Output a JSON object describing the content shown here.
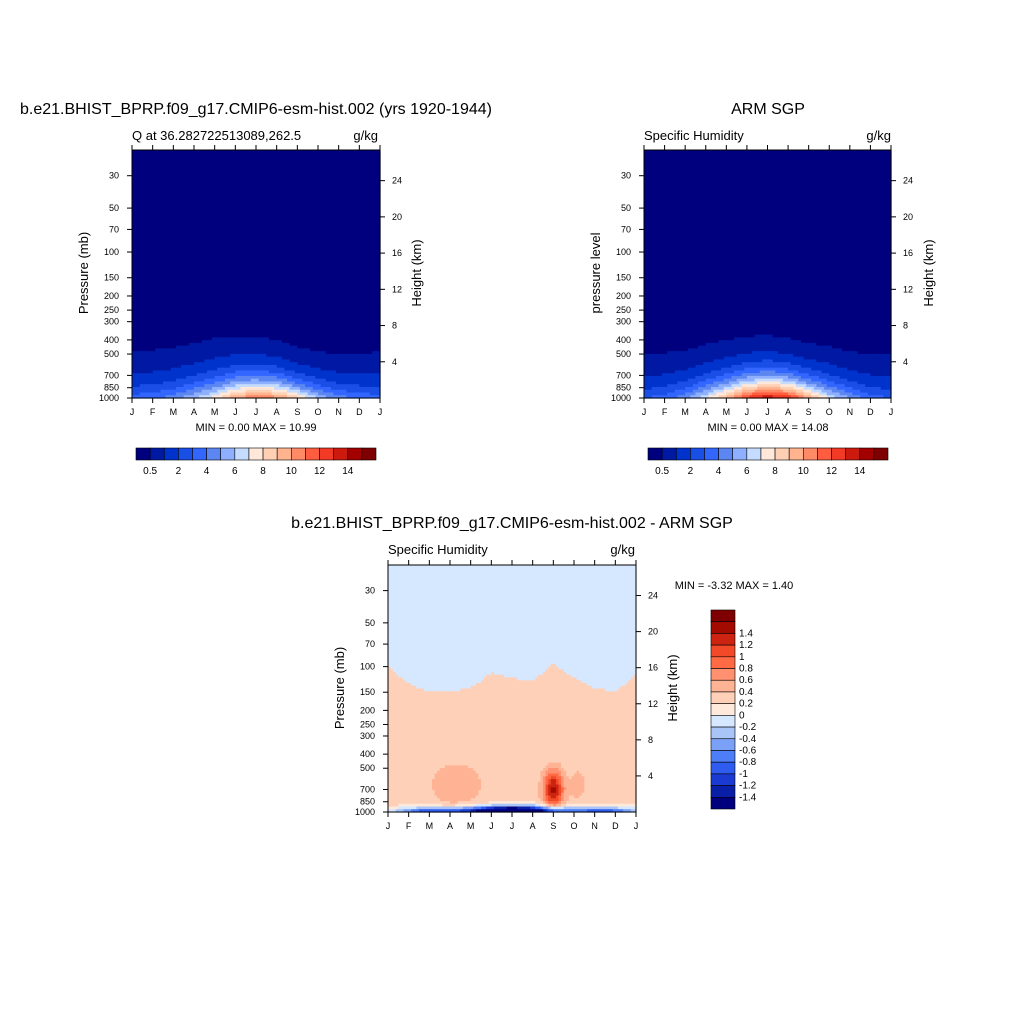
{
  "chart_data": [
    {
      "type": "heatmap",
      "id": "p1",
      "title": "b.e21.BHIST_BPRP.f09_g17.CMIP6-esm-hist.002 (yrs 1920-1944)",
      "subtitle_left": "Q at 36.282722513089,262.5",
      "subtitle_right": "g/kg",
      "ylabel": "Pressure (mb)",
      "ylabel_right": "Height (km)",
      "stats": "MIN =   0.00 MAX =  10.99",
      "peak_value": 10.99,
      "peak_month": "Jul",
      "x_ticks": [
        "J",
        "F",
        "M",
        "A",
        "M",
        "J",
        "J",
        "A",
        "S",
        "O",
        "N",
        "D",
        "J"
      ],
      "y_ticks": [
        "30",
        "50",
        "70",
        "100",
        "150",
        "200",
        "250",
        "300",
        "400",
        "500",
        "700",
        "850",
        "1000"
      ],
      "y_ticks_values": [
        30,
        50,
        70,
        100,
        150,
        200,
        250,
        300,
        400,
        500,
        700,
        850,
        1000
      ],
      "height_ticks": [
        "24",
        "20",
        "16",
        "12",
        "8",
        "4"
      ],
      "height_ticks_values": [
        24,
        20,
        16,
        12,
        8,
        4
      ],
      "colorbar_ticks": [
        "0.5",
        "2",
        "4",
        "6",
        "8",
        "10",
        "12",
        "14"
      ],
      "colorbar_ticks_values": [
        0.5,
        2,
        4,
        6,
        8,
        10,
        12,
        14
      ],
      "colorbar_bounds": [
        0,
        0.5,
        1,
        2,
        3,
        4,
        5,
        6,
        7,
        8,
        9,
        10,
        11,
        12,
        13,
        14,
        15
      ],
      "moisture_top_pressure_by_month": [
        480,
        470,
        450,
        420,
        390,
        380,
        380,
        400,
        450,
        480,
        500,
        500,
        480
      ],
      "surface_value_by_month": [
        3.5,
        3.8,
        4.5,
        6,
        7.5,
        10,
        11,
        10.5,
        8.5,
        6,
        4.5,
        3.8,
        3.5
      ]
    },
    {
      "type": "heatmap",
      "id": "p2",
      "title": "ARM SGP",
      "subtitle_left": "Specific Humidity",
      "subtitle_right": "g/kg",
      "ylabel": "pressure level",
      "ylabel_right": "Height (km)",
      "stats": "MIN =   0.00 MAX =  14.08",
      "peak_value": 14.08,
      "peak_month": "Jul",
      "x_ticks": [
        "J",
        "F",
        "M",
        "A",
        "M",
        "J",
        "J",
        "A",
        "S",
        "O",
        "N",
        "D",
        "J"
      ],
      "y_ticks": [
        "30",
        "50",
        "70",
        "100",
        "150",
        "200",
        "250",
        "300",
        "400",
        "500",
        "700",
        "850",
        "1000"
      ],
      "y_ticks_values": [
        30,
        50,
        70,
        100,
        150,
        200,
        250,
        300,
        400,
        500,
        700,
        850,
        1000
      ],
      "height_ticks": [
        "24",
        "20",
        "16",
        "12",
        "8",
        "4"
      ],
      "height_ticks_values": [
        24,
        20,
        16,
        12,
        8,
        4
      ],
      "colorbar_ticks": [
        "0.5",
        "2",
        "4",
        "6",
        "8",
        "10",
        "12",
        "14"
      ],
      "colorbar_ticks_values": [
        0.5,
        2,
        4,
        6,
        8,
        10,
        12,
        14
      ],
      "colorbar_bounds": [
        0,
        0.5,
        1,
        2,
        3,
        4,
        5,
        6,
        7,
        8,
        9,
        10,
        11,
        12,
        13,
        14,
        15
      ],
      "moisture_top_pressure_by_month": [
        500,
        490,
        470,
        430,
        400,
        380,
        370,
        390,
        420,
        440,
        480,
        500,
        500
      ],
      "surface_value_by_month": [
        3,
        3.5,
        4.8,
        7,
        9.5,
        12.5,
        14,
        13,
        10,
        7,
        5,
        3.5,
        3
      ]
    },
    {
      "type": "heatmap",
      "id": "p3",
      "title": "b.e21.BHIST_BPRP.f09_g17.CMIP6-esm-hist.002 - ARM SGP",
      "subtitle_left": "Specific Humidity",
      "subtitle_right": "g/kg",
      "ylabel": "Pressure (mb)",
      "ylabel_right": "Height (km)",
      "stats": "MIN =  -3.32 MAX =   1.40",
      "x_ticks": [
        "J",
        "F",
        "M",
        "A",
        "M",
        "J",
        "J",
        "A",
        "S",
        "O",
        "N",
        "D",
        "J"
      ],
      "y_ticks": [
        "30",
        "50",
        "70",
        "100",
        "150",
        "200",
        "250",
        "300",
        "400",
        "500",
        "700",
        "850",
        "1000"
      ],
      "y_ticks_values": [
        30,
        50,
        70,
        100,
        150,
        200,
        250,
        300,
        400,
        500,
        700,
        850,
        1000
      ],
      "height_ticks": [
        "24",
        "20",
        "16",
        "12",
        "8",
        "4"
      ],
      "height_ticks_values": [
        24,
        20,
        16,
        12,
        8,
        4
      ],
      "colorbar_ticks": [
        "1.4",
        "1.2",
        "1",
        "0.8",
        "0.6",
        "0.4",
        "0.2",
        "0",
        "-0.2",
        "-0.4",
        "-0.6",
        "-0.8",
        "-1",
        "-1.2",
        "-1.4"
      ],
      "colorbar_ticks_values": [
        1.4,
        1.2,
        1,
        0.8,
        0.6,
        0.4,
        0.2,
        0,
        -0.2,
        -0.4,
        -0.6,
        -0.8,
        -1,
        -1.2,
        -1.4
      ],
      "colorbar_bounds": [
        -1.6,
        -1.4,
        -1.2,
        -1,
        -0.8,
        -0.6,
        -0.4,
        -0.2,
        0,
        0.2,
        0.4,
        0.6,
        0.8,
        1,
        1.2,
        1.4,
        1.6
      ],
      "positive_anomaly_boundary_pressure_by_month": [
        100,
        130,
        150,
        150,
        140,
        110,
        120,
        125,
        95,
        120,
        140,
        150,
        110
      ]
    }
  ],
  "colors": {
    "q_palette": [
      "#00007f",
      "#0019a3",
      "#0033cc",
      "#1a4fe6",
      "#3366ff",
      "#5c87f2",
      "#8fb0ff",
      "#c6dcff",
      "#ffe8d9",
      "#ffd0b3",
      "#ffb38f",
      "#ff8a66",
      "#ff5c40",
      "#f23a26",
      "#cc1a0f",
      "#a30000",
      "#7f0000"
    ],
    "diff_palette": [
      "#00007f",
      "#0a1fa8",
      "#1a3ad1",
      "#2e5cf0",
      "#4d7df7",
      "#7ba0f7",
      "#a9c4f7",
      "#d6e8ff",
      "#ffe9da",
      "#ffd0b8",
      "#ffb395",
      "#ff9170",
      "#ff6a44",
      "#f24a28",
      "#cc2410",
      "#a30a00",
      "#7f0000"
    ]
  }
}
